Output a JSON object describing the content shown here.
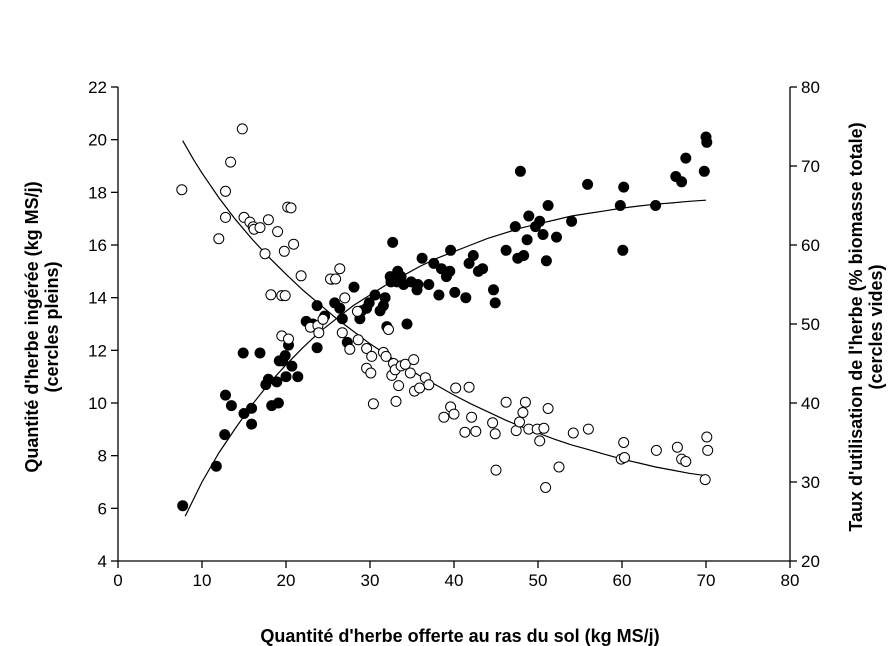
{
  "chart_data": {
    "type": "scatter",
    "title": "",
    "xlabel": "Quantité d'herbe offerte au ras du sol (kg MS/j)",
    "ylabel_left": [
      "Quantité d'herbe ingérée (kg MS/j)",
      "(cercles pleins)"
    ],
    "ylabel_right": [
      "Taux d'utilisation de l'herbe (% biomasse totale)",
      "(cercles vides)"
    ],
    "xlim": [
      0,
      80
    ],
    "ylim_left": [
      4,
      22
    ],
    "ylim_right": [
      20,
      80
    ],
    "x_ticks": [
      0,
      10,
      20,
      30,
      40,
      50,
      60,
      70,
      80
    ],
    "y_left_ticks": [
      4,
      6,
      8,
      10,
      12,
      14,
      16,
      18,
      20,
      22
    ],
    "y_right_ticks": [
      20,
      30,
      40,
      50,
      60,
      70,
      80
    ],
    "grid": false,
    "colors": {
      "filled": "#000000",
      "open_fill": "#ffffff",
      "stroke": "#000000"
    },
    "series": [
      {
        "axis": "left",
        "marker": "filled-circle",
        "points": [
          [
            7.7,
            6.1
          ],
          [
            11.7,
            7.6
          ],
          [
            12.7,
            8.8
          ],
          [
            12.8,
            10.3
          ],
          [
            13.5,
            9.9
          ],
          [
            14.9,
            11.9
          ],
          [
            15,
            9.6
          ],
          [
            15.9,
            9.8
          ],
          [
            15.9,
            9.2
          ],
          [
            16.9,
            11.9
          ],
          [
            17.6,
            10.7
          ],
          [
            17.9,
            10.9
          ],
          [
            18.3,
            9.9
          ],
          [
            18.9,
            10.8
          ],
          [
            19.1,
            10
          ],
          [
            19.2,
            11.6
          ],
          [
            19.6,
            11.6
          ],
          [
            19.9,
            11.8
          ],
          [
            20,
            11
          ],
          [
            20.3,
            12.2
          ],
          [
            20.7,
            11.4
          ],
          [
            21.4,
            11
          ],
          [
            22.4,
            13.1
          ],
          [
            23.2,
            13
          ],
          [
            23.7,
            12.1
          ],
          [
            23.7,
            13.7
          ],
          [
            24.6,
            13.3
          ],
          [
            25.4,
            14.7
          ],
          [
            25.8,
            13.8
          ],
          [
            26.4,
            13.6
          ],
          [
            26.7,
            13.2
          ],
          [
            27.3,
            12.3
          ],
          [
            28.1,
            14.4
          ],
          [
            28.8,
            13.2
          ],
          [
            29,
            13.5
          ],
          [
            29.6,
            13.6
          ],
          [
            29.9,
            13.8
          ],
          [
            30.6,
            14.1
          ],
          [
            31.2,
            13.5
          ],
          [
            31.6,
            13.7
          ],
          [
            31.8,
            14
          ],
          [
            32,
            12.9
          ],
          [
            32.4,
            14.8
          ],
          [
            32.5,
            14.6
          ],
          [
            32.7,
            16.1
          ],
          [
            33.2,
            14.6
          ],
          [
            33.3,
            15
          ],
          [
            33.7,
            14.8
          ],
          [
            34,
            14.5
          ],
          [
            34.4,
            13
          ],
          [
            34.9,
            14.6
          ],
          [
            35.6,
            14.3
          ],
          [
            35.7,
            14.5
          ],
          [
            36.2,
            15.5
          ],
          [
            37,
            14.5
          ],
          [
            37.6,
            15.3
          ],
          [
            38.2,
            14.1
          ],
          [
            38.5,
            15.1
          ],
          [
            39.1,
            14.8
          ],
          [
            39.5,
            15
          ],
          [
            39.6,
            15.8
          ],
          [
            40.1,
            14.2
          ],
          [
            41.4,
            14
          ],
          [
            41.8,
            15.3
          ],
          [
            42.3,
            15.6
          ],
          [
            42.9,
            15
          ],
          [
            43.4,
            15.1
          ],
          [
            44.7,
            14.3
          ],
          [
            44.9,
            13.8
          ],
          [
            46.2,
            15.8
          ],
          [
            47.3,
            16.7
          ],
          [
            47.6,
            15.5
          ],
          [
            47.9,
            18.8
          ],
          [
            48.3,
            15.6
          ],
          [
            48.7,
            16.2
          ],
          [
            48.9,
            17.1
          ],
          [
            49.7,
            16.7
          ],
          [
            50.2,
            16.9
          ],
          [
            50.6,
            16.4
          ],
          [
            51,
            15.4
          ],
          [
            51.2,
            17.5
          ],
          [
            52.2,
            16.3
          ],
          [
            54,
            16.9
          ],
          [
            55.9,
            18.3
          ],
          [
            59.8,
            17.5
          ],
          [
            60.1,
            15.8
          ],
          [
            60.2,
            18.2
          ],
          [
            64,
            17.5
          ],
          [
            66.4,
            18.6
          ],
          [
            67.1,
            18.4
          ],
          [
            67.6,
            19.3
          ],
          [
            69.8,
            18.8
          ],
          [
            70,
            20.1
          ],
          [
            70.1,
            19.9
          ]
        ]
      },
      {
        "axis": "right",
        "marker": "open-circle",
        "points": [
          [
            7.6,
            67
          ],
          [
            12,
            60.8
          ],
          [
            12.8,
            66.8
          ],
          [
            12.8,
            63.5
          ],
          [
            13.4,
            70.5
          ],
          [
            14.8,
            74.7
          ],
          [
            15,
            63.5
          ],
          [
            15.7,
            62.9
          ],
          [
            16.1,
            62.3
          ],
          [
            16.2,
            62
          ],
          [
            16.9,
            62.2
          ],
          [
            17.5,
            58.9
          ],
          [
            17.9,
            63.2
          ],
          [
            18.2,
            53.7
          ],
          [
            19,
            61.7
          ],
          [
            19.5,
            48.5
          ],
          [
            19.5,
            53.6
          ],
          [
            19.8,
            59.2
          ],
          [
            19.9,
            53.6
          ],
          [
            20.2,
            64.8
          ],
          [
            20.3,
            48.1
          ],
          [
            20.6,
            64.7
          ],
          [
            20.9,
            60.1
          ],
          [
            21.8,
            56.1
          ],
          [
            22.9,
            49.6
          ],
          [
            23.8,
            49.8
          ],
          [
            23.9,
            48.9
          ],
          [
            24.4,
            50.6
          ],
          [
            25.3,
            55.7
          ],
          [
            25.9,
            55.7
          ],
          [
            26.4,
            57
          ],
          [
            26.7,
            48.9
          ],
          [
            27,
            53.3
          ],
          [
            27.6,
            46.8
          ],
          [
            28.5,
            51.6
          ],
          [
            28.6,
            48
          ],
          [
            29.6,
            44.4
          ],
          [
            29.6,
            46.9
          ],
          [
            30.1,
            43.8
          ],
          [
            30.2,
            45.9
          ],
          [
            30.4,
            39.9
          ],
          [
            31.6,
            46.4
          ],
          [
            31.9,
            45.9
          ],
          [
            32.2,
            49.3
          ],
          [
            32.6,
            43.5
          ],
          [
            32.8,
            45
          ],
          [
            33,
            44.2
          ],
          [
            33.1,
            40.2
          ],
          [
            33.4,
            42.2
          ],
          [
            33.7,
            44.7
          ],
          [
            34.2,
            44.9
          ],
          [
            34.8,
            43.8
          ],
          [
            35.2,
            45.5
          ],
          [
            35.3,
            41.5
          ],
          [
            35.9,
            41.9
          ],
          [
            36.6,
            43.2
          ],
          [
            37,
            42.3
          ],
          [
            38.8,
            38.2
          ],
          [
            39.6,
            39.5
          ],
          [
            40,
            38.6
          ],
          [
            40.2,
            41.9
          ],
          [
            41.3,
            36.3
          ],
          [
            41.8,
            42
          ],
          [
            42.1,
            38.2
          ],
          [
            42.6,
            36.4
          ],
          [
            44.6,
            37.5
          ],
          [
            44.9,
            36.1
          ],
          [
            45,
            31.5
          ],
          [
            46.2,
            40.1
          ],
          [
            47.4,
            36.5
          ],
          [
            47.8,
            37.6
          ],
          [
            48.2,
            38.8
          ],
          [
            48.5,
            40.1
          ],
          [
            48.9,
            36.7
          ],
          [
            49.9,
            36.7
          ],
          [
            50.2,
            35.2
          ],
          [
            50.7,
            36.8
          ],
          [
            50.9,
            29.3
          ],
          [
            51.2,
            39.3
          ],
          [
            52.5,
            31.9
          ],
          [
            54.2,
            36.2
          ],
          [
            56,
            36.7
          ],
          [
            59.9,
            32.9
          ],
          [
            60.2,
            35
          ],
          [
            60.3,
            33.1
          ],
          [
            64.1,
            34
          ],
          [
            66.6,
            34.4
          ],
          [
            67.1,
            32.9
          ],
          [
            67.6,
            32.6
          ],
          [
            69.9,
            30.3
          ],
          [
            70.1,
            35.7
          ],
          [
            70.2,
            34
          ]
        ]
      },
      {
        "axis": "left",
        "marker": "curve",
        "note": "fitted curve through filled circles",
        "points": [
          [
            8,
            5.7
          ],
          [
            10,
            7
          ],
          [
            12,
            8.1
          ],
          [
            14,
            9.05
          ],
          [
            16,
            9.95
          ],
          [
            18,
            10.75
          ],
          [
            20,
            11.45
          ],
          [
            22,
            12.1
          ],
          [
            24,
            12.7
          ],
          [
            26,
            13.2
          ],
          [
            28,
            13.7
          ],
          [
            30,
            14.1
          ],
          [
            32,
            14.5
          ],
          [
            34,
            14.85
          ],
          [
            36,
            15.2
          ],
          [
            38,
            15.5
          ],
          [
            40,
            15.75
          ],
          [
            42,
            16
          ],
          [
            44,
            16.25
          ],
          [
            46,
            16.45
          ],
          [
            48,
            16.65
          ],
          [
            50,
            16.8
          ],
          [
            52,
            16.95
          ],
          [
            54,
            17.1
          ],
          [
            56,
            17.2
          ],
          [
            58,
            17.3
          ],
          [
            60,
            17.4
          ],
          [
            62,
            17.48
          ],
          [
            64,
            17.55
          ],
          [
            66,
            17.6
          ],
          [
            68,
            17.66
          ],
          [
            70,
            17.7
          ]
        ]
      },
      {
        "axis": "right",
        "marker": "curve",
        "note": "fitted curve through open circles",
        "points": [
          [
            7.7,
            73.2
          ],
          [
            9,
            70.8
          ],
          [
            10,
            69.1
          ],
          [
            12,
            66
          ],
          [
            14,
            63.2
          ],
          [
            16,
            60.7
          ],
          [
            18,
            58.4
          ],
          [
            20,
            56.3
          ],
          [
            22,
            54.3
          ],
          [
            24,
            52.5
          ],
          [
            26,
            50.7
          ],
          [
            28,
            49.1
          ],
          [
            30,
            47.5
          ],
          [
            32,
            46.1
          ],
          [
            34,
            44.7
          ],
          [
            36,
            43.4
          ],
          [
            38,
            42.2
          ],
          [
            40,
            41
          ],
          [
            42,
            39.9
          ],
          [
            44,
            38.9
          ],
          [
            46,
            37.9
          ],
          [
            48,
            37
          ],
          [
            50,
            36.2
          ],
          [
            52,
            35.4
          ],
          [
            54,
            34.7
          ],
          [
            56,
            34.1
          ],
          [
            58,
            33.5
          ],
          [
            60,
            32.9
          ],
          [
            62,
            32.4
          ],
          [
            64,
            31.9
          ],
          [
            66,
            31.5
          ],
          [
            68,
            31.1
          ],
          [
            70,
            30.8
          ]
        ]
      }
    ]
  }
}
